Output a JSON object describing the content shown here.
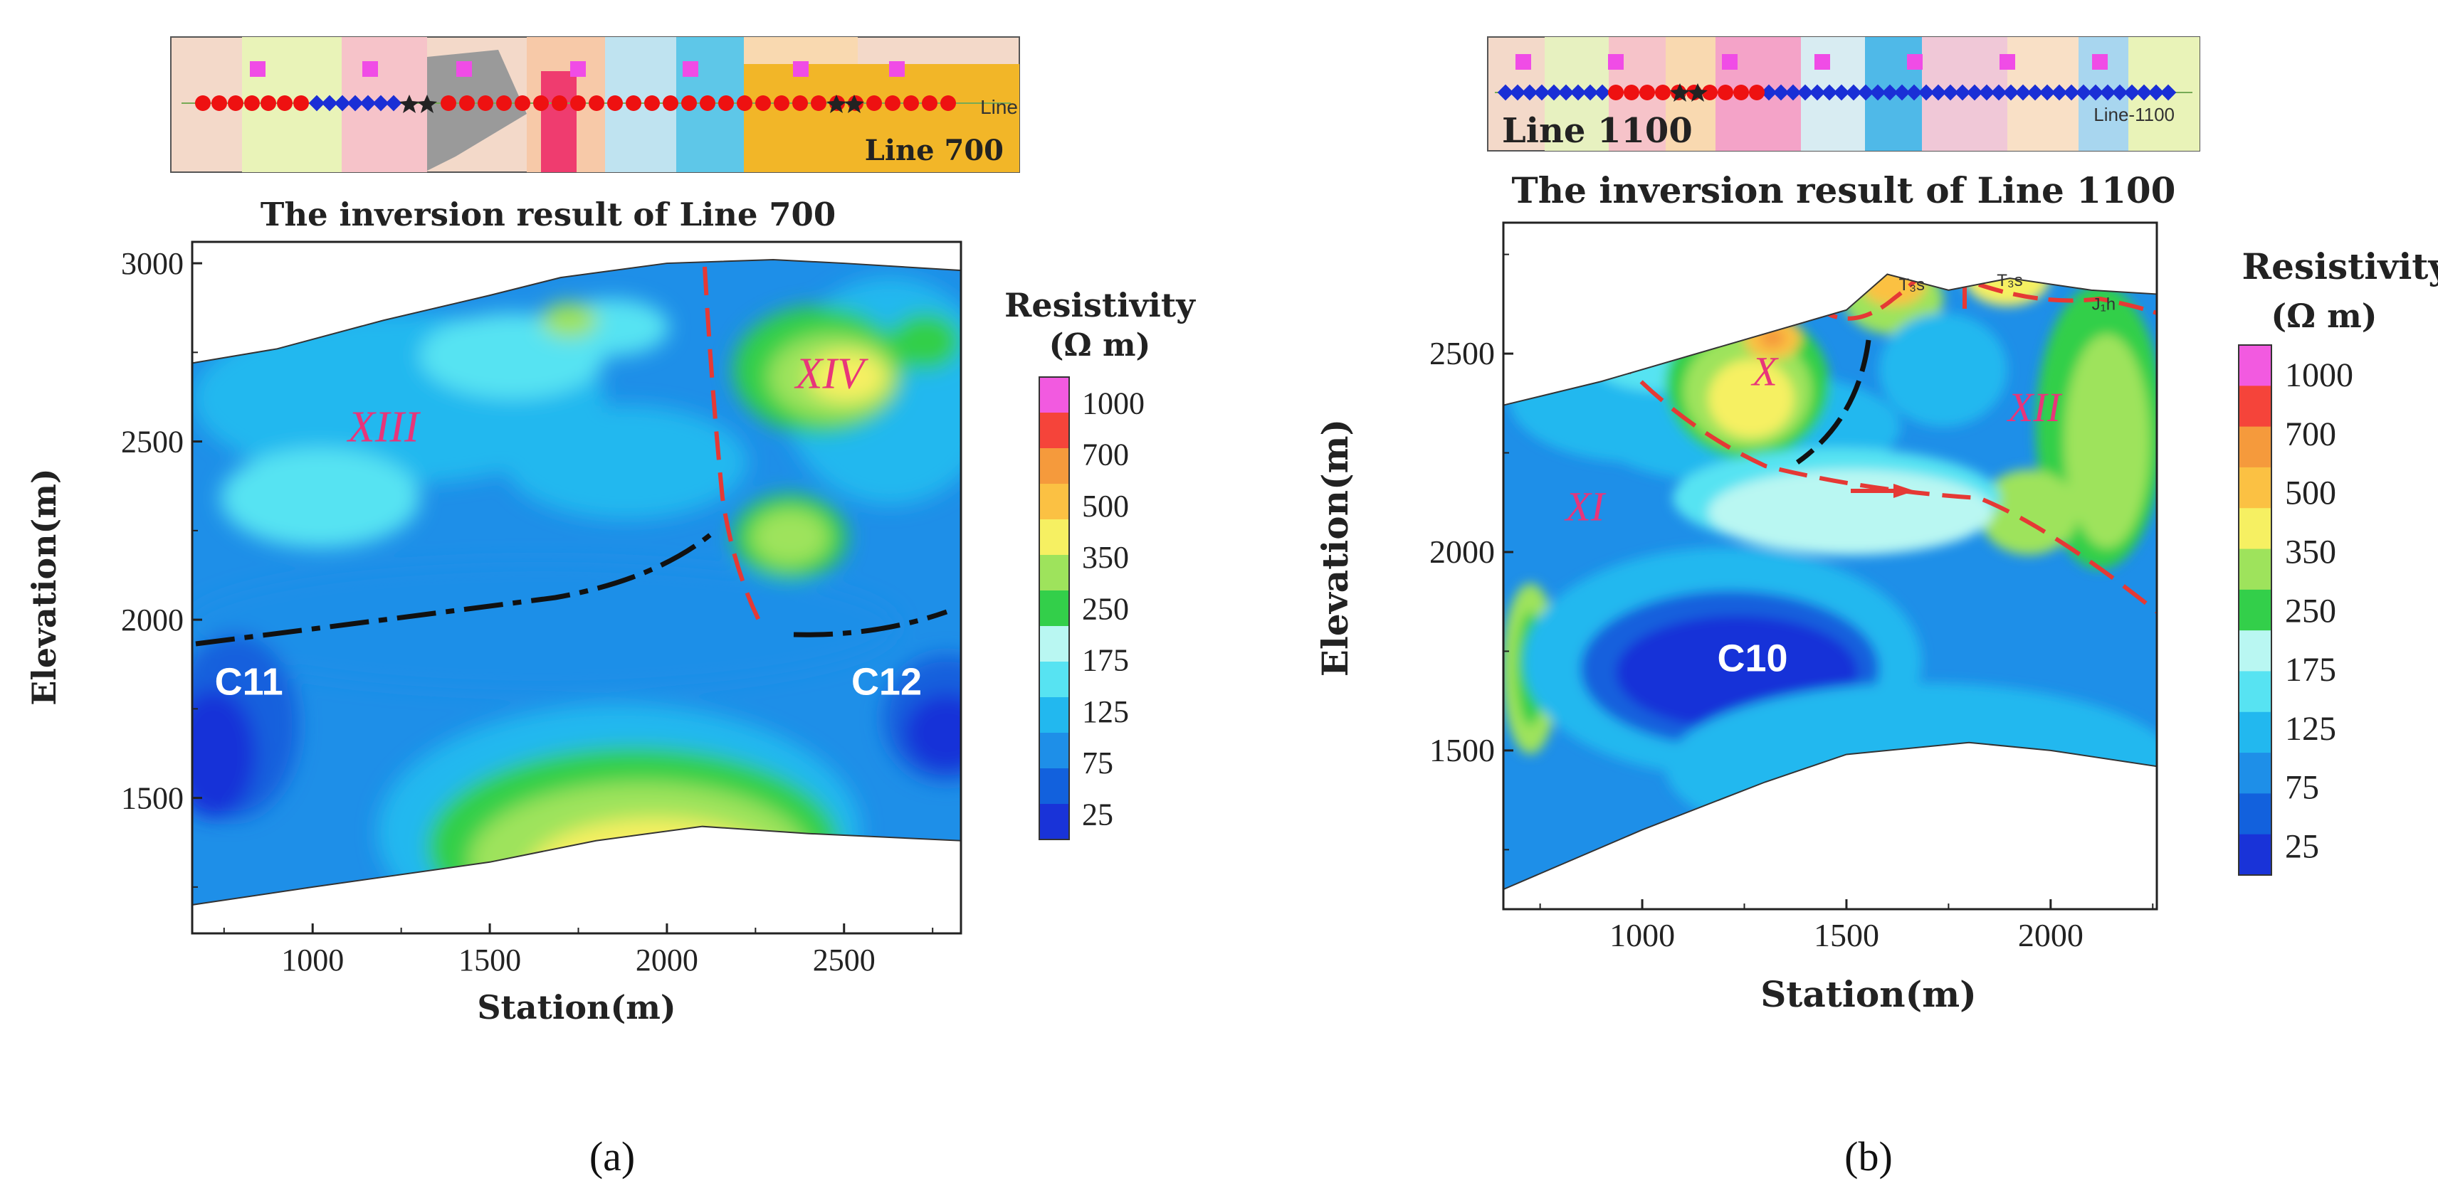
{
  "legend_title": "Resistivity",
  "legend_unit": "(Ω m)",
  "colorbar": {
    "labels": [
      "1000",
      "700",
      "500",
      "350",
      "250",
      "175",
      "125",
      "75",
      "25"
    ],
    "colors": [
      "#f25ae0",
      "#f5443a",
      "#f59a3c",
      "#fbc143",
      "#f6f062",
      "#9ee35c",
      "#33cf4a",
      "#b9f7f2",
      "#57e3f2",
      "#22b8ef",
      "#1e8fe8",
      "#1261dd",
      "#1933d8"
    ]
  },
  "chart_data": [
    {
      "type": "heatmap",
      "panel": "a",
      "caption": "(a)",
      "title": "The inversion result of Line 700",
      "xlabel": "Station(m)",
      "ylabel": "Elevation(m)",
      "xlim": [
        660,
        2830
      ],
      "ylim": [
        1120,
        3060
      ],
      "xticks": [
        1000,
        1500,
        2000,
        2500
      ],
      "yticks": [
        1500,
        2000,
        2500,
        3000
      ],
      "surface_top": [
        [
          660,
          2720
        ],
        [
          900,
          2760
        ],
        [
          1200,
          2840
        ],
        [
          1500,
          2910
        ],
        [
          1700,
          2960
        ],
        [
          2000,
          3000
        ],
        [
          2300,
          3010
        ],
        [
          2500,
          3000
        ],
        [
          2830,
          2980
        ]
      ],
      "surface_bottom": [
        [
          660,
          1200
        ],
        [
          1000,
          1250
        ],
        [
          1500,
          1320
        ],
        [
          1800,
          1380
        ],
        [
          2100,
          1420
        ],
        [
          2400,
          1400
        ],
        [
          2830,
          1380
        ]
      ],
      "zones": [
        {
          "label": "XIII",
          "x": 1200,
          "y": 2500
        },
        {
          "label": "XIV",
          "x": 2460,
          "y": 2650
        }
      ],
      "anomalies": [
        {
          "label": "C11",
          "x": 820,
          "y": 1790
        },
        {
          "label": "C12",
          "x": 2620,
          "y": 1790
        }
      ],
      "map": {
        "label": "Line 700",
        "line_label": "Line"
      }
    },
    {
      "type": "heatmap",
      "panel": "b",
      "caption": "(b)",
      "title": "The inversion result of Line 1100",
      "xlabel": "Station(m)",
      "ylabel": "Elevation(m)",
      "xlim": [
        660,
        2260
      ],
      "ylim": [
        1100,
        2830
      ],
      "xticks": [
        1000,
        1500,
        2000
      ],
      "yticks": [
        1500,
        2000,
        2500
      ],
      "surface_top": [
        [
          660,
          2370
        ],
        [
          900,
          2430
        ],
        [
          1200,
          2520
        ],
        [
          1500,
          2610
        ],
        [
          1600,
          2700
        ],
        [
          1750,
          2660
        ],
        [
          1900,
          2690
        ],
        [
          2100,
          2660
        ],
        [
          2260,
          2650
        ]
      ],
      "surface_bottom": [
        [
          660,
          1150
        ],
        [
          1000,
          1300
        ],
        [
          1300,
          1420
        ],
        [
          1500,
          1490
        ],
        [
          1800,
          1520
        ],
        [
          2000,
          1500
        ],
        [
          2260,
          1460
        ]
      ],
      "zones": [
        {
          "label": "X",
          "x": 1300,
          "y": 2420
        },
        {
          "label": "XI",
          "x": 860,
          "y": 2080
        },
        {
          "label": "XII",
          "x": 1960,
          "y": 2330
        }
      ],
      "surface_units": [
        {
          "label": "T₃s",
          "x": 1660,
          "y": 2660
        },
        {
          "label": "T₃s",
          "x": 1900,
          "y": 2670
        },
        {
          "label": "J₁h",
          "x": 2130,
          "y": 2610
        }
      ],
      "anomalies": [
        {
          "label": "C10",
          "x": 1270,
          "y": 1700
        }
      ],
      "map": {
        "label": "Line 1100",
        "line_label": "Line-1100"
      }
    }
  ]
}
